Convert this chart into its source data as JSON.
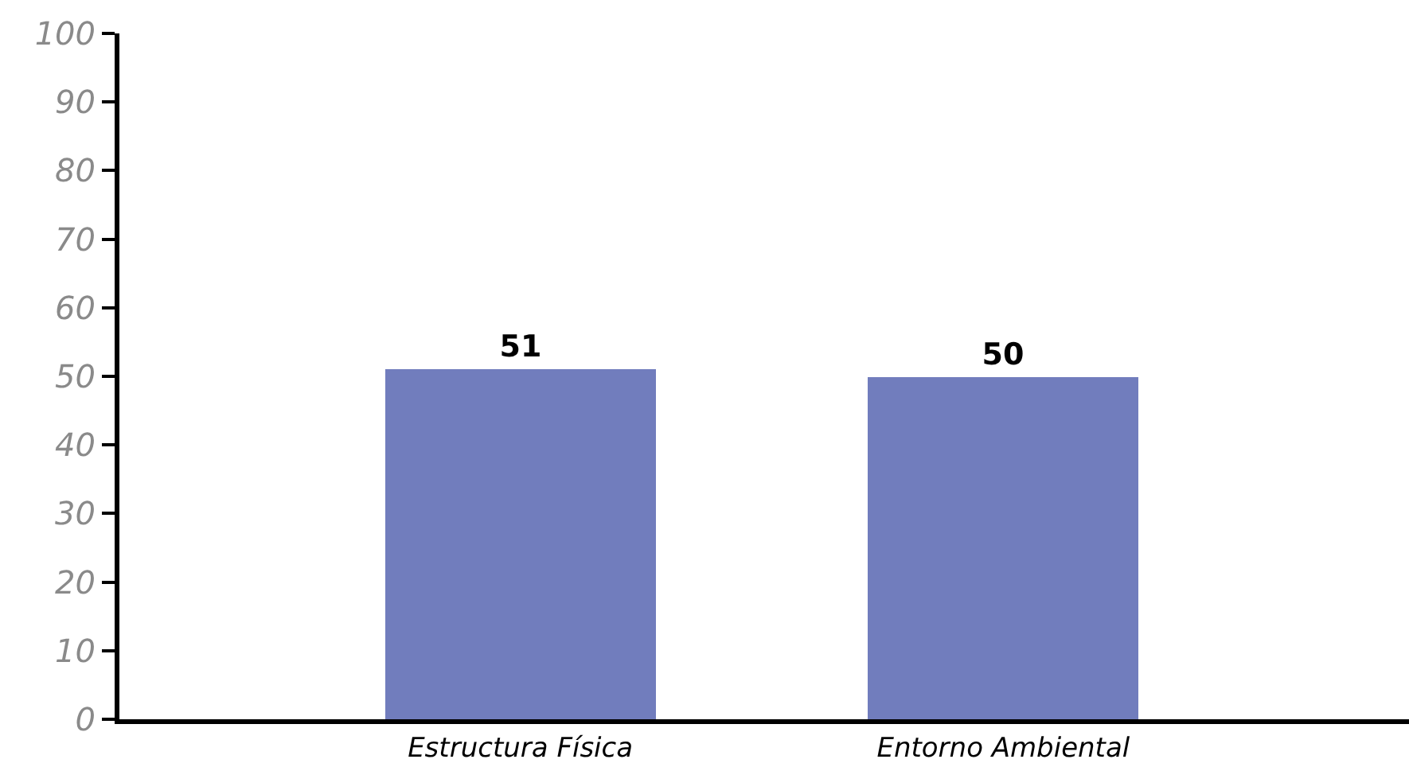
{
  "chart_data": {
    "type": "bar",
    "categories": [
      "Estructura Física",
      "Entorno Ambiental"
    ],
    "values": [
      51,
      50
    ],
    "color": "#717dbd",
    "data_labels": true,
    "ylim": [
      0,
      100
    ],
    "yticks": [
      0,
      10,
      20,
      30,
      40,
      50,
      60,
      70,
      80,
      90,
      100
    ],
    "grid": false,
    "legend": false
  }
}
